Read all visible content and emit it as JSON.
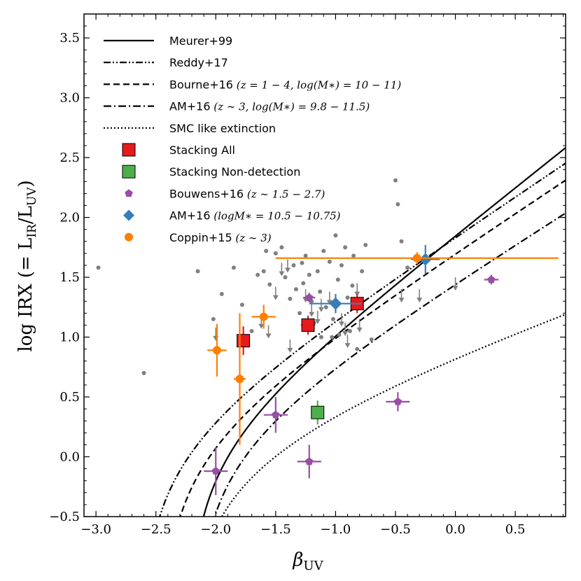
{
  "chart_data": {
    "type": "scatter",
    "title": "",
    "xlabel": {
      "main": "β",
      "sub": "UV"
    },
    "ylabel": {
      "main": "log IRX (= L",
      "sub1": "IR",
      "mid": "/L",
      "sub2": "UV",
      "end": ")"
    },
    "xlim": [
      -3.1,
      0.92
    ],
    "ylim": [
      -0.5,
      3.7
    ],
    "xticks": [
      -3.0,
      -2.5,
      -2.0,
      -1.5,
      -1.0,
      -0.5,
      0.0,
      0.5
    ],
    "xtick_labels": [
      "−3.0",
      "−2.5",
      "−2.0",
      "−1.5",
      "−1.0",
      "−0.5",
      "0.0",
      "0.5"
    ],
    "yticks": [
      -0.5,
      0.0,
      0.5,
      1.0,
      1.5,
      2.0,
      2.5,
      3.0,
      3.5
    ],
    "ytick_labels": [
      "−0.5",
      "0.0",
      "0.5",
      "1.0",
      "1.5",
      "2.0",
      "2.5",
      "3.0",
      "3.5"
    ],
    "curves": [
      {
        "name": "Meurer+99",
        "style": "solid",
        "beta0": -2.23,
        "a": 1.99
      },
      {
        "name": "Reddy+17",
        "style": "dashdotdot",
        "beta0": -2.62,
        "a": 1.68
      },
      {
        "name": "Bourne+16",
        "style": "dashed",
        "beta0": -2.45,
        "a": 1.66
      },
      {
        "name": "AM+16",
        "style": "dashdot",
        "beta0": -2.17,
        "a": 1.59
      },
      {
        "name": "SMC like extinction",
        "style": "dotted",
        "beta0": -2.23,
        "a": 0.91
      }
    ],
    "legend": [
      {
        "label": "Meurer+99",
        "math": "",
        "kind": "line",
        "style": "solid"
      },
      {
        "label": "Reddy+17",
        "math": "",
        "kind": "line",
        "style": "dashdotdot"
      },
      {
        "label": "Bourne+16",
        "math": "(z = 1 − 4, log(M∗) = 10 − 11)",
        "kind": "line",
        "style": "dashed"
      },
      {
        "label": "AM+16",
        "math": "(z ∼ 3, log(M∗) = 9.8 − 11.5)",
        "kind": "line",
        "style": "dashdot"
      },
      {
        "label": "SMC like extinction",
        "math": "",
        "kind": "line",
        "style": "dotted"
      },
      {
        "label": "Stacking All",
        "math": "",
        "kind": "square",
        "color": "#e41a1c"
      },
      {
        "label": "Stacking Non-detection",
        "math": "",
        "kind": "square",
        "color": "#4daf4a"
      },
      {
        "label": "Bouwens+16",
        "math": "(z ∼ 1.5 − 2.7)",
        "kind": "pentagon",
        "color": "#984ea3"
      },
      {
        "label": "AM+16",
        "math": "(logM∗ = 10.5 − 10.75)",
        "kind": "diamond",
        "color": "#377eb8"
      },
      {
        "label": "Coppin+15",
        "math": "(z ∼ 3)",
        "kind": "circle",
        "color": "#ff7f00"
      }
    ],
    "series": [
      {
        "name": "Individual detections",
        "color": "#808080",
        "marker": "small-dot",
        "points": [
          [
            -2.98,
            1.58
          ],
          [
            -2.6,
            0.7
          ],
          [
            -2.15,
            1.55
          ],
          [
            -2.02,
            1.15
          ],
          [
            -1.95,
            1.36
          ],
          [
            -1.85,
            1.58
          ],
          [
            -1.78,
            1.27
          ],
          [
            -1.7,
            1.05
          ],
          [
            -1.65,
            1.52
          ],
          [
            -1.6,
            1.55
          ],
          [
            -1.58,
            1.72
          ],
          [
            -1.55,
            1.44
          ],
          [
            -1.5,
            1.7
          ],
          [
            -1.45,
            1.75
          ],
          [
            -1.42,
            1.5
          ],
          [
            -1.38,
            1.32
          ],
          [
            -1.35,
            1.6
          ],
          [
            -1.3,
            1.2
          ],
          [
            -1.27,
            1.45
          ],
          [
            -1.25,
            1.68
          ],
          [
            -1.22,
            1.52
          ],
          [
            -1.2,
            1.3
          ],
          [
            -1.18,
            1.12
          ],
          [
            -1.15,
            1.55
          ],
          [
            -1.13,
            1.38
          ],
          [
            -1.1,
            1.72
          ],
          [
            -1.08,
            1.25
          ],
          [
            -1.05,
            1.63
          ],
          [
            -1.03,
            1.0
          ],
          [
            -1.0,
            1.85
          ],
          [
            -0.98,
            1.48
          ],
          [
            -0.95,
            1.6
          ],
          [
            -0.92,
            1.75
          ],
          [
            -0.9,
            1.33
          ],
          [
            -0.88,
            1.05
          ],
          [
            -0.85,
            1.68
          ],
          [
            -0.82,
            0.9
          ],
          [
            -0.78,
            1.55
          ],
          [
            -0.75,
            1.77
          ],
          [
            -0.7,
            0.98
          ],
          [
            -0.5,
            2.31
          ],
          [
            -0.48,
            2.11
          ],
          [
            -0.45,
            1.8
          ],
          [
            -0.4,
            1.58
          ],
          [
            -1.02,
            1.15
          ],
          [
            -0.97,
            1.02
          ],
          [
            -1.12,
            1.0
          ],
          [
            -1.28,
            1.62
          ],
          [
            -1.33,
            1.4
          ],
          [
            -0.86,
            1.43
          ]
        ]
      },
      {
        "name": "Upper limits",
        "color": "#808080",
        "marker": "down-arrow",
        "points": [
          [
            -2.0,
            1.08
          ],
          [
            -1.62,
            1.18
          ],
          [
            -1.56,
            1.1
          ],
          [
            -1.5,
            1.42
          ],
          [
            -1.45,
            1.62
          ],
          [
            -1.4,
            1.65
          ],
          [
            -1.38,
            0.98
          ],
          [
            -1.25,
            1.4
          ],
          [
            -1.2,
            1.28
          ],
          [
            -1.15,
            1.22
          ],
          [
            -1.12,
            1.32
          ],
          [
            -1.05,
            1.38
          ],
          [
            -0.95,
            1.2
          ],
          [
            -0.92,
            1.12
          ],
          [
            -0.82,
            1.45
          ],
          [
            -0.8,
            1.15
          ],
          [
            -0.9,
            1.02
          ],
          [
            -0.45,
            1.4
          ],
          [
            -0.3,
            1.4
          ],
          [
            0.0,
            1.5
          ]
        ]
      },
      {
        "name": "Stacking All",
        "color": "#e41a1c",
        "marker": "square",
        "points": [
          {
            "x": -1.77,
            "y": 0.97,
            "xerr": 0.05,
            "yerr": 0.12
          },
          {
            "x": -1.23,
            "y": 1.1,
            "xerr": 0.06,
            "yerr": 0.08
          },
          {
            "x": -0.82,
            "y": 1.28,
            "xerr": 0.05,
            "yerr": 0.08
          }
        ]
      },
      {
        "name": "Stacking Non-detection",
        "color": "#4daf4a",
        "marker": "square",
        "points": [
          {
            "x": -1.15,
            "y": 0.37,
            "xerr": 0.0,
            "yerr": 0.1
          }
        ]
      },
      {
        "name": "Bouwens+16",
        "color": "#984ea3",
        "marker": "pentagon",
        "points": [
          {
            "x": -2.0,
            "y": -0.12,
            "xerr": 0.1,
            "yerr": 0.2
          },
          {
            "x": -1.5,
            "y": 0.35,
            "xerr": 0.1,
            "yerr": 0.15
          },
          {
            "x": -1.22,
            "y": -0.04,
            "xerr": 0.1,
            "yerr": 0.14
          },
          {
            "x": -1.22,
            "y": 1.33,
            "xerr": 0.05,
            "yerr": 0.04
          },
          {
            "x": -0.48,
            "y": 0.46,
            "xerr": 0.1,
            "yerr": 0.08
          },
          {
            "x": 0.3,
            "y": 1.48,
            "xerr": 0.06,
            "yerr": 0.04
          }
        ]
      },
      {
        "name": "AM+16 (stellar mass bin)",
        "color": "#377eb8",
        "marker": "diamond",
        "points": [
          {
            "x": -1.0,
            "y": 1.28,
            "xerr": 0.22,
            "yerr": 0.08
          },
          {
            "x": -0.25,
            "y": 1.65,
            "xerr": 0.12,
            "yerr": 0.12
          }
        ]
      },
      {
        "name": "Coppin+15",
        "color": "#ff7f00",
        "marker": "circle",
        "points": [
          {
            "x": -1.99,
            "y": 0.89,
            "xerr": 0.08,
            "yerr": 0.22
          },
          {
            "x": -1.8,
            "y": 0.65,
            "xerr": 0.05,
            "yerr": 0.55
          },
          {
            "x": -1.6,
            "y": 1.17,
            "xerr": 0.1,
            "yerr": 0.1
          },
          {
            "x": -0.32,
            "y": 1.66,
            "xerr": 1.18,
            "yerr": 0.05
          }
        ]
      }
    ]
  }
}
